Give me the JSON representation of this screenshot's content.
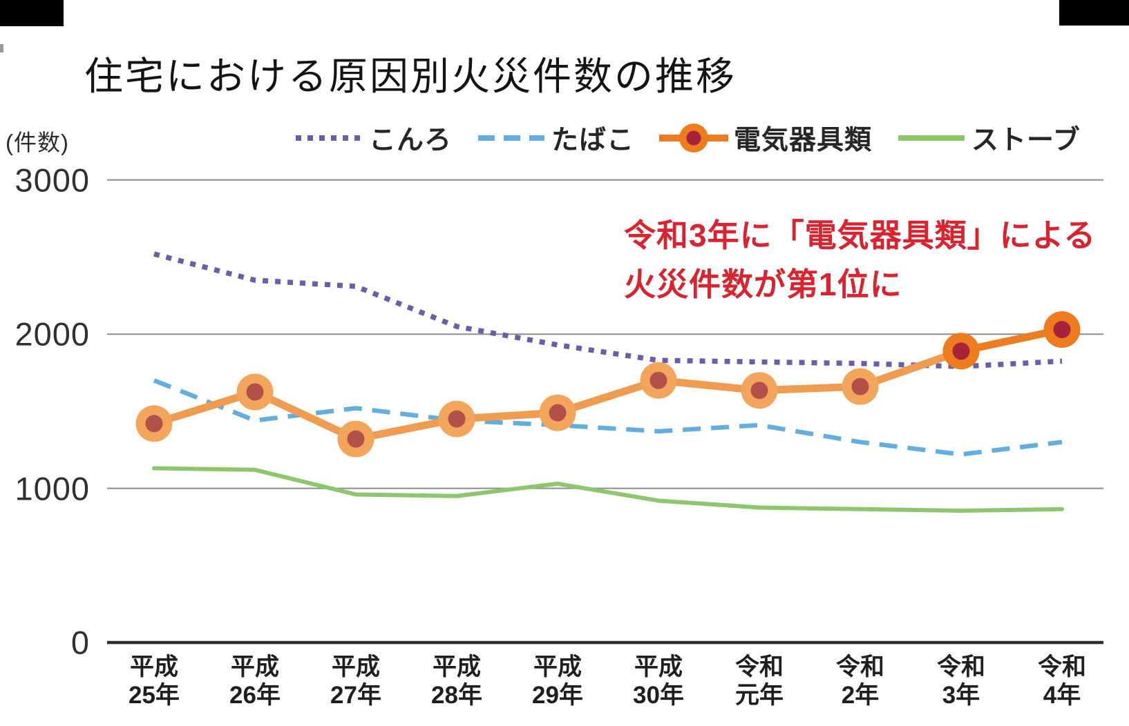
{
  "title": "住宅における原因別火災件数の推移",
  "axis": {
    "unit": "(件数)",
    "y_ticks": [
      {
        "value": 3000,
        "label": "3000"
      },
      {
        "value": 2000,
        "label": "2000"
      },
      {
        "value": 1000,
        "label": "1000"
      },
      {
        "value": 0,
        "label": "0"
      }
    ]
  },
  "annotation": {
    "line1": "令和3年に「電気器具類」による",
    "line2": "火災件数が第1位に",
    "color": "#d9232e"
  },
  "chart_data": {
    "type": "line",
    "title": "住宅における原因別火災件数の推移",
    "ylabel": "件数",
    "ylim": [
      0,
      3000
    ],
    "grid": "horizontal",
    "legend_position": "top",
    "categories": [
      [
        "平成",
        "25年"
      ],
      [
        "平成",
        "26年"
      ],
      [
        "平成",
        "27年"
      ],
      [
        "平成",
        "28年"
      ],
      [
        "平成",
        "29年"
      ],
      [
        "平成",
        "30年"
      ],
      [
        "令和",
        "元年"
      ],
      [
        "令和",
        "2年"
      ],
      [
        "令和",
        "3年"
      ],
      [
        "令和",
        "4年"
      ]
    ],
    "series": [
      {
        "name": "こんろ",
        "style": "dotted",
        "color": "#6a5ea8",
        "values": [
          2520,
          2350,
          2310,
          2050,
          1930,
          1830,
          1820,
          1810,
          1790,
          1825
        ]
      },
      {
        "name": "たばこ",
        "style": "dashed",
        "color": "#64aede",
        "values": [
          1700,
          1440,
          1520,
          1440,
          1410,
          1370,
          1410,
          1300,
          1220,
          1300
        ]
      },
      {
        "name": "電気器具類",
        "style": "marker",
        "color": "#ee7c1e",
        "line_color": "#f09c50",
        "line_color_final": "#ec7d22",
        "marker_fill": "#f3a55c",
        "marker_center": "#b25149",
        "marker_fill_highlight": "#ee7c1e",
        "marker_center_highlight": "#a62339",
        "highlight_from_index": 8,
        "values": [
          1420,
          1625,
          1320,
          1450,
          1490,
          1700,
          1635,
          1660,
          1890,
          2030
        ]
      },
      {
        "name": "ストーブ",
        "style": "solid",
        "color": "#8cc66d",
        "values": [
          1130,
          1120,
          960,
          950,
          1030,
          920,
          875,
          865,
          855,
          865
        ]
      }
    ]
  }
}
